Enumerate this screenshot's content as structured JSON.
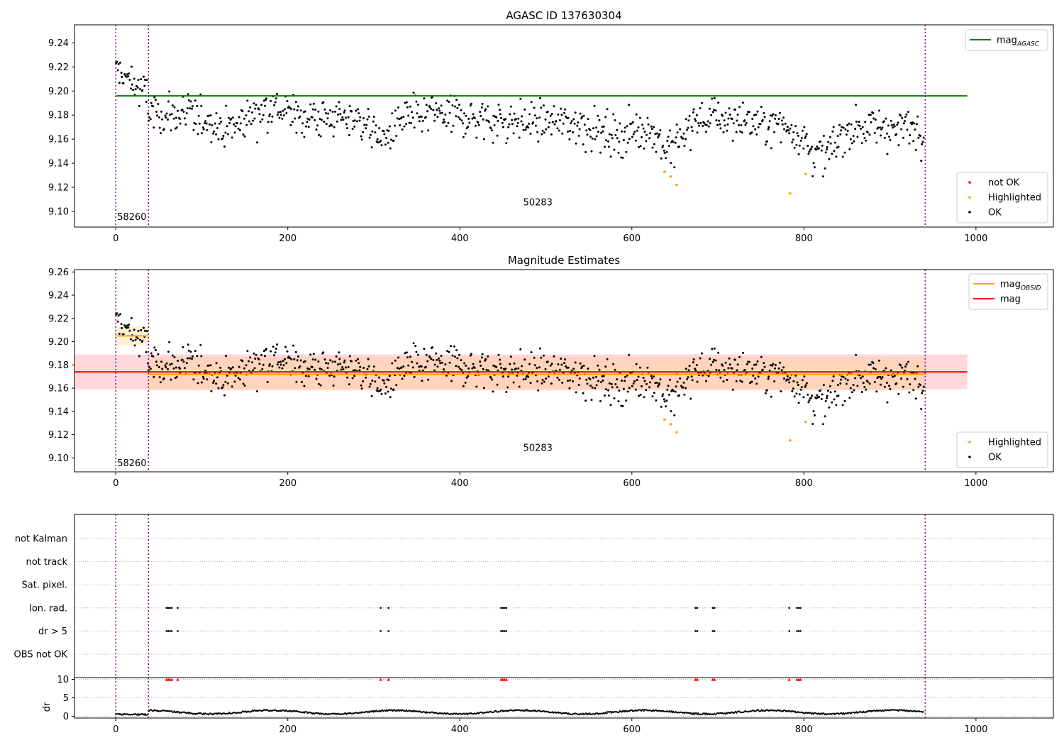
{
  "chart_data": [
    {
      "type": "scatter",
      "title": "AGASC ID 137630304",
      "xlim": [
        -48,
        1090
      ],
      "ylim": [
        9.087,
        9.255
      ],
      "xticks": [
        0,
        200,
        400,
        600,
        800,
        1000
      ],
      "yticks": [
        9.1,
        9.12,
        9.14,
        9.16,
        9.18,
        9.2,
        9.22,
        9.24
      ],
      "vlines": [
        0,
        38,
        941
      ],
      "obsid_labels": [
        {
          "text": "58260",
          "x": 0,
          "y": 9.093
        },
        {
          "text": "50283",
          "x": 472,
          "y": 9.105
        }
      ],
      "lines": [
        {
          "name": "mag_AGASC",
          "color": "#008000",
          "x": [
            0,
            990
          ],
          "y": [
            9.196,
            9.196
          ]
        }
      ],
      "highlighted": {
        "color": "#ffa500",
        "x": [
          638,
          645,
          652,
          784,
          802
        ],
        "y": [
          9.133,
          9.129,
          9.122,
          9.115,
          9.131
        ]
      },
      "legend_top": {
        "placement": "top-right",
        "entries": [
          {
            "label": "mag",
            "sub": "AGASC",
            "color": "#008000"
          }
        ]
      },
      "legend_bottom": {
        "placement": "bottom-right",
        "entries": [
          {
            "label": "not OK",
            "color": "#ff0000"
          },
          {
            "label": "Highlighted",
            "color": "#ffa500"
          },
          {
            "label": "OK",
            "color": "#000000"
          }
        ]
      }
    },
    {
      "type": "scatter",
      "title": "Magnitude Estimates",
      "xlim": [
        -48,
        1090
      ],
      "ylim": [
        9.088,
        9.262
      ],
      "xticks": [
        0,
        200,
        400,
        600,
        800,
        1000
      ],
      "yticks": [
        9.1,
        9.12,
        9.14,
        9.16,
        9.18,
        9.2,
        9.22,
        9.24,
        9.26
      ],
      "vlines": [
        0,
        38,
        941
      ],
      "obsid_labels": [
        {
          "text": "58260",
          "x": 0,
          "y": 9.093
        },
        {
          "text": "50283",
          "x": 472,
          "y": 9.106
        }
      ],
      "bands": [
        {
          "x": [
            -48,
            990
          ],
          "y": [
            9.159,
            9.189
          ],
          "color": "#ffb6c1"
        },
        {
          "x": [
            0,
            38
          ],
          "y": [
            9.197,
            9.213
          ],
          "color": "#ffe4b5"
        },
        {
          "x": [
            38,
            941
          ],
          "y": [
            9.158,
            9.187
          ],
          "color": "#ffd0a0"
        }
      ],
      "lines": [
        {
          "name": "mag",
          "color": "#ff0000",
          "x": [
            -48,
            990
          ],
          "y": [
            9.174,
            9.174
          ]
        },
        {
          "name": "mag_OBSID",
          "color": "#ffa500",
          "x": [
            0,
            38
          ],
          "y": [
            9.205,
            9.205
          ]
        },
        {
          "name": "mag_OBSID",
          "color": "#ffa500",
          "x": [
            38,
            941
          ],
          "y": [
            9.172,
            9.172
          ]
        }
      ],
      "highlighted": {
        "color": "#ffa500",
        "x": [
          638,
          645,
          652,
          784,
          802
        ],
        "y": [
          9.133,
          9.129,
          9.122,
          9.115,
          9.131
        ]
      },
      "legend_top": {
        "placement": "top-right",
        "entries": [
          {
            "label": "mag",
            "sub": "OBSID",
            "color": "#ffa500"
          },
          {
            "label": "mag",
            "sub": "",
            "color": "#ff0000"
          }
        ]
      },
      "legend_bottom": {
        "placement": "bottom-right",
        "entries": [
          {
            "label": "Highlighted",
            "color": "#ffa500"
          },
          {
            "label": "OK",
            "color": "#000000"
          }
        ]
      }
    },
    {
      "type": "scatter",
      "xlim": [
        -48,
        1090
      ],
      "xticks": [
        0,
        200,
        400,
        600,
        800,
        1000
      ],
      "vlines": [
        0,
        38,
        941
      ],
      "flag_rows": [
        "not Kalman",
        "not track",
        "Sat. pixel.",
        "Ion. rad.",
        "dr > 5",
        "OBS not OK"
      ],
      "flags": [
        {
          "row": "Ion. rad.",
          "x": [
            59,
            61,
            63,
            65,
            72,
            308,
            317,
            448,
            450,
            452,
            454,
            674,
            676,
            694,
            696,
            783,
            792,
            794,
            796
          ]
        },
        {
          "row": "dr > 5",
          "x": [
            59,
            61,
            63,
            65,
            72,
            308,
            317,
            448,
            450,
            452,
            454,
            674,
            676,
            694,
            696,
            783,
            792,
            794,
            796
          ]
        }
      ],
      "dr_panel": {
        "ylabel": "dr",
        "ylim": [
          -0.5,
          10.5
        ],
        "yticks": [
          0,
          5,
          10
        ],
        "marker_color": "#ff0000",
        "marker_y": 10,
        "marker_x": [
          59,
          61,
          63,
          65,
          72,
          308,
          317,
          448,
          450,
          452,
          454,
          674,
          676,
          694,
          696,
          783,
          792,
          794,
          796
        ]
      }
    }
  ]
}
